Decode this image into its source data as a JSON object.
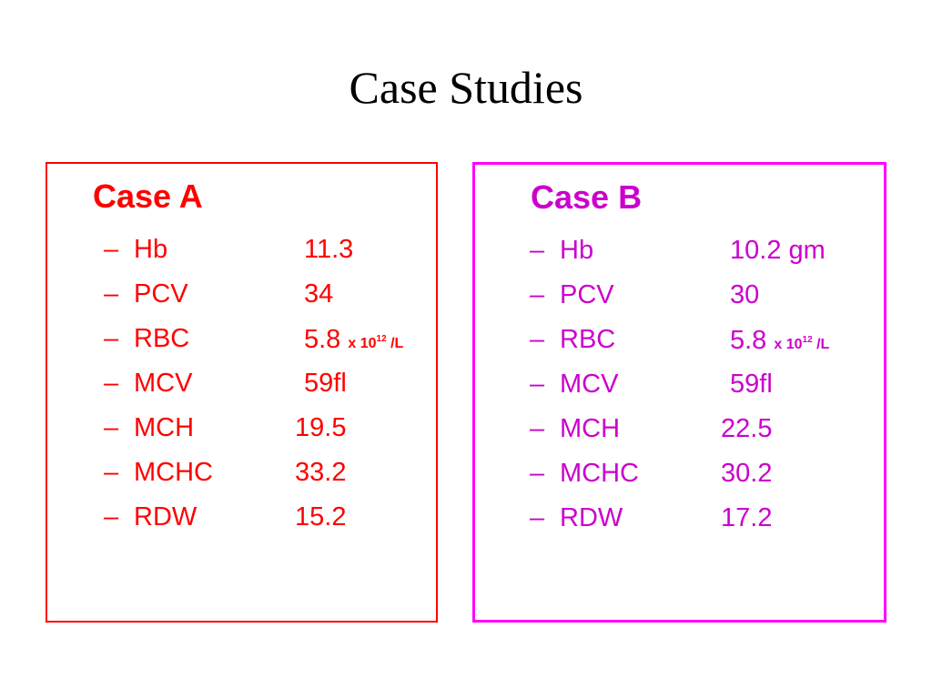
{
  "title": "Case Studies",
  "colors": {
    "case_a": "#ff0000",
    "case_b": "#cc00cc",
    "case_b_border": "#ff00ff"
  },
  "dash": "–",
  "case_a": {
    "heading": "Case A",
    "rows": [
      {
        "name": "Hb",
        "value": "11.3",
        "unit": ""
      },
      {
        "name": "PCV",
        "value": "34",
        "unit": ""
      },
      {
        "name": "RBC",
        "value": "5.8",
        "unit_prefix": "x 10",
        "unit_exp": "12",
        "unit_suffix": " /L"
      },
      {
        "name": "MCV",
        "value": "59fl",
        "unit": ""
      },
      {
        "name": "MCH",
        "value": "19.5",
        "unit": ""
      },
      {
        "name": "MCHC",
        "value": "33.2",
        "unit": ""
      },
      {
        "name": "RDW",
        "value": "15.2",
        "unit": ""
      }
    ]
  },
  "case_b": {
    "heading": "Case B",
    "rows": [
      {
        "name": "Hb",
        "value": "10.2 gm",
        "unit": ""
      },
      {
        "name": "PCV",
        "value": "30",
        "unit": ""
      },
      {
        "name": "RBC",
        "value": "5.8",
        "unit_prefix": "x 10",
        "unit_exp": "12",
        "unit_suffix": " /L"
      },
      {
        "name": "MCV",
        "value": "59fl",
        "unit": ""
      },
      {
        "name": "MCH",
        "value": "22.5",
        "unit": ""
      },
      {
        "name": "MCHC",
        "value": "30.2",
        "unit": ""
      },
      {
        "name": "RDW",
        "value": "17.2",
        "unit": ""
      }
    ]
  }
}
